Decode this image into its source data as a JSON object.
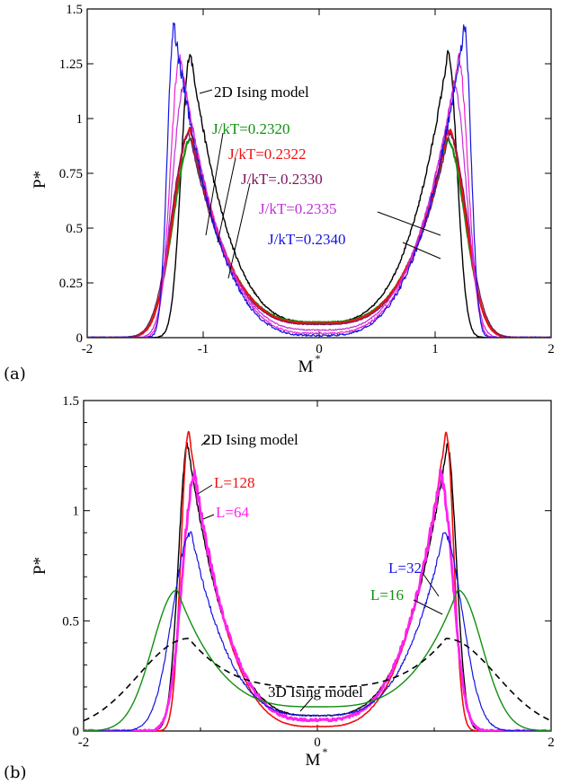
{
  "chart_data": [
    {
      "type": "line",
      "panel": "(a)",
      "xlabel": "M",
      "xlabel_sup": "*",
      "ylabel": "P*",
      "xlim": [
        -2,
        2
      ],
      "ylim": [
        0,
        1.5
      ],
      "xticks": [
        -2,
        -1,
        0,
        1,
        2
      ],
      "xtick_labels": [
        "-2",
        "-1",
        "0",
        "1",
        "2"
      ],
      "yticks": [
        0,
        0.25,
        0.5,
        0.75,
        1,
        1.25,
        1.5
      ],
      "ytick_labels": [
        "0",
        "0.25",
        "0.5",
        "0.75",
        "1",
        "1.25",
        "1.5"
      ],
      "series": [
        {
          "name": "2D Ising model",
          "color": "#000000",
          "dash": "",
          "width": 1.4,
          "peak_x": 1.11,
          "peak_y": 1.3,
          "center_y": 0.07,
          "noise": 0.004
        },
        {
          "name": "J/kT=0.2320",
          "color": "#109010",
          "dash": "",
          "width": 2.2,
          "peak_x": 1.1,
          "peak_y": 0.91,
          "center_y": 0.07,
          "noise": 0.003
        },
        {
          "name": "J/kT=0.2322",
          "color": "#ee1111",
          "dash": "",
          "width": 2.2,
          "peak_x": 1.11,
          "peak_y": 0.95,
          "center_y": 0.065,
          "noise": 0.003
        },
        {
          "name": "J/kT=.0.2330",
          "color": "#7b1460",
          "dash": "",
          "width": 1.2,
          "peak_x": 1.12,
          "peak_y": 0.93,
          "center_y": 0.06,
          "noise": 0.003
        },
        {
          "name": "J/kT=0.2335",
          "color": "#c030d8",
          "dash": "",
          "width": 1.2,
          "peak_x": 1.16,
          "peak_y": 1.16,
          "center_y": 0.035,
          "noise": 0.004
        },
        {
          "name": "",
          "color": "#ee20d0",
          "dash": "",
          "width": 1.2,
          "peak_x": 1.2,
          "peak_y": 1.28,
          "center_y": 0.02,
          "noise": 0.006
        },
        {
          "name": "J/kT=0.2340",
          "color": "#1414e0",
          "dash": "",
          "width": 1.2,
          "peak_x": 1.25,
          "peak_y": 1.42,
          "center_y": 0.01,
          "noise": 0.008
        }
      ],
      "annotations": [
        {
          "text": "2D Ising model",
          "color": "#000000"
        },
        {
          "text": "J/kT=0.2320",
          "color": "#109010"
        },
        {
          "text": "J/kT=0.2322",
          "color": "#ee1111"
        },
        {
          "text": "J/kT=.0.2330",
          "color": "#7b1460"
        },
        {
          "text": "J/kT=0.2335",
          "color": "#c030d8"
        },
        {
          "text": "J/kT=0.2340",
          "color": "#1414e0"
        }
      ]
    },
    {
      "type": "line",
      "panel": "(b)",
      "xlabel": "M",
      "xlabel_sup": "*",
      "ylabel": "P*",
      "xlim": [
        -2,
        2
      ],
      "ylim": [
        0,
        1.5
      ],
      "xticks": [
        -2,
        0,
        2
      ],
      "xtick_labels": [
        "-2",
        "0",
        "2"
      ],
      "yticks": [
        0,
        0.5,
        1,
        1.5
      ],
      "ytick_labels": [
        "0",
        "0.5",
        "1",
        "1.5"
      ],
      "series": [
        {
          "name": "2D Ising model",
          "color": "#000000",
          "dash": "",
          "width": 1.4,
          "peak_x": 1.11,
          "peak_y": 1.3,
          "center_y": 0.07,
          "noise": 0.003
        },
        {
          "name": "L=128",
          "color": "#ee1111",
          "dash": "",
          "width": 1.6,
          "peak_x": 1.1,
          "peak_y": 1.36,
          "center_y": 0.02,
          "noise": 0.002
        },
        {
          "name": "L=64",
          "color": "#ff22ee",
          "dash": "",
          "width": 2.8,
          "peak_x": 1.05,
          "peak_y": 1.16,
          "center_y": 0.05,
          "noise": 0.008
        },
        {
          "name": "L=32",
          "color": "#1414e0",
          "dash": "",
          "width": 1.2,
          "peak_x": 1.08,
          "peak_y": 0.9,
          "center_y": 0.07,
          "noise": 0.004
        },
        {
          "name": "L=16",
          "color": "#109010",
          "dash": "",
          "width": 1.4,
          "peak_x": 1.2,
          "peak_y": 0.64,
          "center_y": 0.11,
          "noise": 0.0
        },
        {
          "name": "3D Ising model",
          "color": "#000000",
          "dash": "7,5",
          "width": 1.6,
          "peak_x": 1.1,
          "peak_y": 0.42,
          "center_y": 0.2,
          "noise": 0.0
        }
      ],
      "annotations": [
        {
          "text": "2D Ising model",
          "color": "#000000"
        },
        {
          "text": "L=128",
          "color": "#ee1111"
        },
        {
          "text": "L=64",
          "color": "#ff22ee"
        },
        {
          "text": "L=32",
          "color": "#1414e0"
        },
        {
          "text": "L=16",
          "color": "#109010"
        },
        {
          "text": "3D Ising model",
          "color": "#000000"
        }
      ]
    }
  ]
}
